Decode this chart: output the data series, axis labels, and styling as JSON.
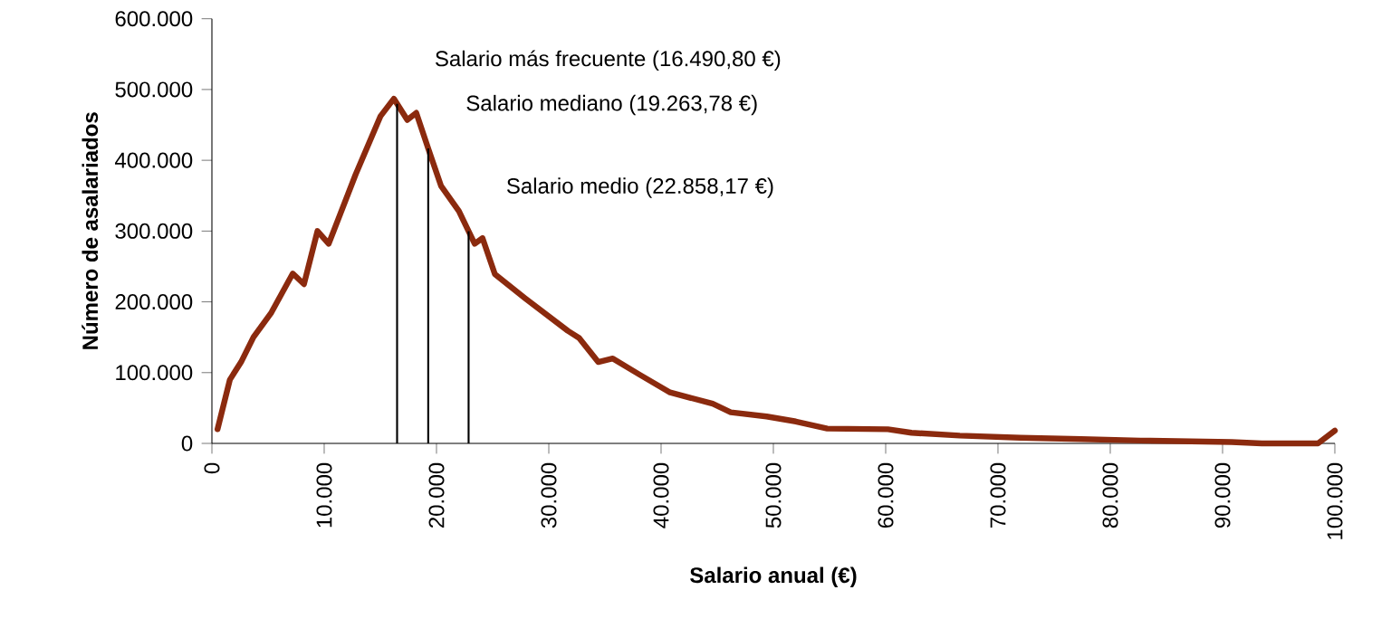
{
  "chart_data": {
    "type": "line",
    "xlabel": "Salario anual (€)",
    "ylabel": "Número de asalariados",
    "x": [
      500,
      1600,
      2600,
      3700,
      5300,
      7200,
      8200,
      9400,
      10400,
      12800,
      15000,
      16200,
      17400,
      18200,
      19300,
      20400,
      22000,
      23400,
      24100,
      25200,
      27900,
      31700,
      32700,
      34400,
      35700,
      38100,
      40800,
      44600,
      46200,
      49400,
      52000,
      54800,
      60200,
      62300,
      66600,
      72000,
      77400,
      82700,
      90800,
      93500,
      98500,
      100000
    ],
    "series": [
      {
        "color": "#8b2a0e",
        "values": [
          20000,
          90000,
          115000,
          150000,
          185000,
          240000,
          225000,
          300000,
          282000,
          380000,
          462000,
          487000,
          457000,
          467000,
          415000,
          364000,
          328000,
          282000,
          290000,
          239000,
          205000,
          159000,
          149000,
          115000,
          120000,
          97000,
          72000,
          56000,
          44000,
          38000,
          31000,
          21000,
          20000,
          15000,
          11000,
          8000,
          6000,
          4000,
          2000,
          0,
          0,
          18000
        ]
      }
    ],
    "xlim": [
      0,
      100000
    ],
    "ylim": [
      0,
      600000
    ],
    "xticks": [
      {
        "value": 0,
        "label": "0"
      },
      {
        "value": 10000,
        "label": "10.000"
      },
      {
        "value": 20000,
        "label": "20.000"
      },
      {
        "value": 30000,
        "label": "30.000"
      },
      {
        "value": 40000,
        "label": "40.000"
      },
      {
        "value": 50000,
        "label": "50.000"
      },
      {
        "value": 60000,
        "label": "60.000"
      },
      {
        "value": 70000,
        "label": "70.000"
      },
      {
        "value": 80000,
        "label": "80.000"
      },
      {
        "value": 90000,
        "label": "90.000"
      },
      {
        "value": 100000,
        "label": "100.000"
      }
    ],
    "yticks": [
      {
        "value": 0,
        "label": "0"
      },
      {
        "value": 100000,
        "label": "100.000"
      },
      {
        "value": 200000,
        "label": "200.000"
      },
      {
        "value": 300000,
        "label": "300.000"
      },
      {
        "value": 400000,
        "label": "400.000"
      },
      {
        "value": 500000,
        "label": "500.000"
      },
      {
        "value": 600000,
        "label": "600.000"
      }
    ],
    "ref_lines": [
      {
        "axis": "x",
        "value": 16490.8,
        "label": "Salario más frecuente (16.490,80 €)",
        "color": "#000000"
      },
      {
        "axis": "x",
        "value": 19263.78,
        "label": "Salario mediano (19.263,78 €)",
        "color": "#000000"
      },
      {
        "axis": "x",
        "value": 22858.17,
        "label": "Salario medio (22.858,17 €)",
        "color": "#000000"
      }
    ],
    "grid": false,
    "marker": "none",
    "line_style": "solid"
  }
}
